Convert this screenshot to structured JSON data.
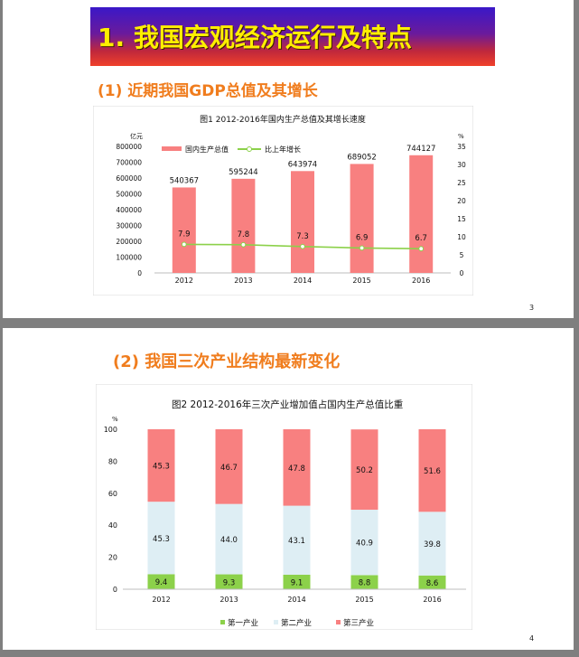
{
  "slide1": {
    "banner_title": "1. 我国宏观经济运行及特点",
    "subtitle": "(1) 近期我国GDP总值及其增长",
    "page_number": "3",
    "chart_data": {
      "type": "bar",
      "title": "图1   2012-2016年国内生产总值及其增长速度",
      "ylabel_left": "亿元",
      "ylabel_right": "%",
      "categories": [
        "2012",
        "2013",
        "2014",
        "2015",
        "2016"
      ],
      "series": [
        {
          "name": "国内生产总值",
          "type": "bar",
          "values": [
            540367,
            595244,
            643974,
            689052,
            744127
          ],
          "labels": [
            "540367",
            "595244",
            "643974",
            "689052",
            "744127"
          ]
        },
        {
          "name": "比上年增长",
          "type": "line",
          "values": [
            7.9,
            7.8,
            7.3,
            6.9,
            6.7
          ],
          "labels": [
            "7.9",
            "7.8",
            "7.3",
            "6.9",
            "6.7"
          ]
        }
      ],
      "ylim_left": [
        0,
        800000
      ],
      "yticks_left": [
        "0",
        "100000",
        "200000",
        "300000",
        "400000",
        "500000",
        "600000",
        "700000",
        "800000"
      ],
      "ylim_right": [
        0,
        35
      ],
      "yticks_right": [
        "0",
        "5",
        "10",
        "15",
        "20",
        "25",
        "30",
        "35"
      ],
      "legend_position": "top-left",
      "colors": {
        "bar": "#f88080",
        "line": "#8cd14a",
        "marker": "#ffffff"
      }
    }
  },
  "slide2": {
    "subtitle": "(2) 我国三次产业结构最新变化",
    "page_number": "4",
    "chart_data": {
      "type": "bar",
      "stacked": true,
      "title": "图2   2012-2016年三次产业增加值占国内生产总值比重",
      "ylabel": "%",
      "categories": [
        "2012",
        "2013",
        "2014",
        "2015",
        "2016"
      ],
      "series": [
        {
          "name": "第一产业",
          "values": [
            9.4,
            9.3,
            9.1,
            8.8,
            8.6
          ],
          "labels": [
            "9.4",
            "9.3",
            "9.1",
            "8.8",
            "8.6"
          ],
          "color": "#8cd14a"
        },
        {
          "name": "第二产业",
          "values": [
            45.3,
            44.0,
            43.1,
            40.9,
            39.8
          ],
          "labels": [
            "45.3",
            "44.0",
            "43.1",
            "40.9",
            "39.8"
          ],
          "color": "#deeef4"
        },
        {
          "name": "第三产业",
          "values": [
            45.3,
            46.7,
            47.8,
            50.2,
            51.6
          ],
          "labels": [
            "45.3",
            "46.7",
            "47.8",
            "50.2",
            "51.6"
          ],
          "color": "#f88080"
        }
      ],
      "ylim": [
        0,
        100
      ],
      "yticks": [
        "0",
        "20",
        "40",
        "60",
        "80",
        "100"
      ],
      "legend_position": "bottom",
      "grid": false
    }
  }
}
